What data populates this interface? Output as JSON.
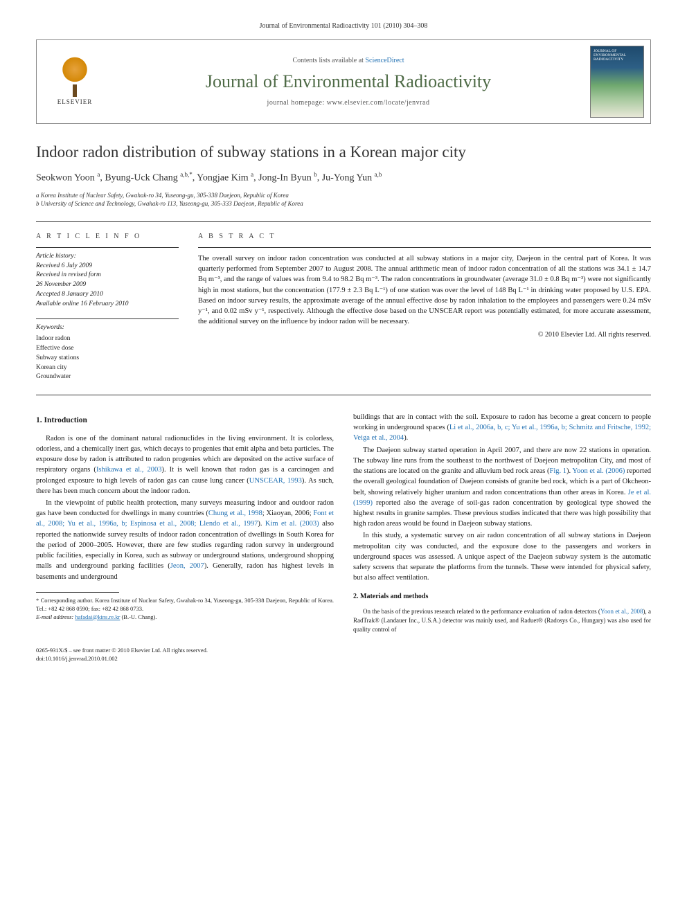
{
  "running_head": "Journal of Environmental Radioactivity 101 (2010) 304–308",
  "masthead": {
    "elsevier": "ELSEVIER",
    "contents_prefix": "Contents lists available at ",
    "contents_link": "ScienceDirect",
    "journal_name": "Journal of Environmental Radioactivity",
    "homepage_prefix": "journal homepage: ",
    "homepage_url": "www.elsevier.com/locate/jenvrad",
    "cover_text": "JOURNAL OF ENVIRONMENTAL RADIOACTIVITY"
  },
  "title": "Indoor radon distribution of subway stations in a Korean major city",
  "authors_html": "Seokwon Yoon <sup>a</sup>, Byung-Uck Chang <sup>a,b,*</sup>, Yongjae Kim <sup>a</sup>, Jong-In Byun <sup>b</sup>, Ju-Yong Yun <sup>a,b</sup>",
  "affiliations": [
    "a Korea Institute of Nuclear Safety, Gwahak-ro 34, Yuseong-gu, 305-338 Daejeon, Republic of Korea",
    "b University of Science and Technology, Gwahak-ro 113, Yuseong-gu, 305-333 Daejeon, Republic of Korea"
  ],
  "info_label": "A R T I C L E   I N F O",
  "abstract_label": "A B S T R A C T",
  "history": {
    "hdr": "Article history:",
    "lines": [
      "Received 6 July 2009",
      "Received in revised form",
      "26 November 2009",
      "Accepted 8 January 2010",
      "Available online 16 February 2010"
    ]
  },
  "keywords": {
    "hdr": "Keywords:",
    "items": [
      "Indoor radon",
      "Effective dose",
      "Subway stations",
      "Korean city",
      "Groundwater"
    ]
  },
  "abstract": "The overall survey on indoor radon concentration was conducted at all subway stations in a major city, Daejeon in the central part of Korea. It was quarterly performed from September 2007 to August 2008. The annual arithmetic mean of indoor radon concentration of all the stations was 34.1 ± 14.7 Bq m⁻³, and the range of values was from 9.4 to 98.2 Bq m⁻³. The radon concentrations in groundwater (average 31.0 ± 0.8 Bq m⁻³) were not significantly high in most stations, but the concentration (177.9 ± 2.3 Bq L⁻¹) of one station was over the level of 148 Bq L⁻¹ in drinking water proposed by U.S. EPA. Based on indoor survey results, the approximate average of the annual effective dose by radon inhalation to the employees and passengers were 0.24 mSv y⁻¹, and 0.02 mSv y⁻¹, respectively. Although the effective dose based on the UNSCEAR report was potentially estimated, for more accurate assessment, the additional survey on the influence by indoor radon will be necessary.",
  "copyright": "© 2010 Elsevier Ltd. All rights reserved.",
  "sections": {
    "intro_heading": "1.  Introduction",
    "intro_p1": "Radon is one of the dominant natural radionuclides in the living environment. It is colorless, odorless, and a chemically inert gas, which decays to progenies that emit alpha and beta particles. The exposure dose by radon is attributed to radon progenies which are deposited on the active surface of respiratory organs (",
    "intro_p1_cite1": "Ishikawa et al., 2003",
    "intro_p1b": "). It is well known that radon gas is a carcinogen and prolonged exposure to high levels of radon gas can cause lung cancer (",
    "intro_p1_cite2": "UNSCEAR, 1993",
    "intro_p1c": "). As such, there has been much concern about the indoor radon.",
    "intro_p2a": "In the viewpoint of public health protection, many surveys measuring indoor and outdoor radon gas have been conducted for dwellings in many countries (",
    "intro_p2_cite1": "Chung et al., 1998",
    "intro_p2b": "; Xiaoyan, 2006; ",
    "intro_p2_cite2": "Font et al., 2008; Yu et al., 1996a, b; Espinosa et al., 2008; Llendo et al., 1997",
    "intro_p2c": "). ",
    "intro_p2_cite3": "Kim et al. (2003)",
    "intro_p2d": " also reported the nationwide survey results of indoor radon concentration of dwellings in South Korea for the period of 2000–2005. However, there are few studies regarding radon survey in underground public facilities, especially in Korea, such as subway or underground stations, underground shopping malls and underground parking facilities (",
    "intro_p2_cite4": "Jeon, 2007",
    "intro_p2e": "). Generally, radon has highest levels in basements and underground",
    "col2_p1a": "buildings that are in contact with the soil. Exposure to radon has become a great concern to people working in underground spaces (",
    "col2_p1_cite1": "Li et al., 2006a, b, c; Yu et al., 1996a, b; Schmitz and Fritsche, 1992; Veiga et al., 2004",
    "col2_p1b": ").",
    "col2_p2a": "The Daejeon subway started operation in April 2007, and there are now 22 stations in operation. The subway line runs from the southeast to the northwest of Daejeon metropolitan City, and most of the stations are located on the granite and alluvium bed rock areas (",
    "col2_p2_cite1": "Fig. 1",
    "col2_p2b": "). ",
    "col2_p2_cite2": "Yoon et al. (2006)",
    "col2_p2c": " reported the overall geological foundation of Daejeon consists of granite bed rock, which is a part of Okcheon-belt, showing relatively higher uranium and radon concentrations than other areas in Korea. ",
    "col2_p2_cite3": "Je et al. (1999)",
    "col2_p2d": " reported also the average of soil-gas radon concentration by geological type showed the highest results in granite samples. These previous studies indicated that there was high possibility that high radon areas would be found in Daejeon subway stations.",
    "col2_p3": "In this study, a systematic survey on air radon concentration of all subway stations in Daejeon metropolitan city was conducted, and the exposure dose to the passengers and workers in underground spaces was assessed. A unique aspect of the Daejeon subway system is the automatic safety screens that separate the platforms from the tunnels. These were intended for physical safety, but also affect ventilation.",
    "methods_heading": "2.  Materials and methods",
    "methods_p1a": "On the basis of the previous research related to the performance evaluation of radon detectors (",
    "methods_p1_cite1": "Yoon et al., 2008",
    "methods_p1b": "), a RadTrak® (Landauer Inc., U.S.A.) detector was mainly used, and Raduet® (Radosys Co., Hungary) was also used for quality control of"
  },
  "footnotes": {
    "corresponding": "* Corresponding author. Korea Institute of Nuclear Safety, Gwahak-ro 34, Yuseong-gu, 305-338 Daejeon, Republic of Korea. Tel.: +82 42 868 0590; fax: +82 42 868 0733.",
    "email_label": "E-mail address: ",
    "email": "hafadai@kins.re.kr",
    "email_suffix": " (B.-U. Chang)."
  },
  "footer": {
    "left_line1": "0265-931X/$ – see front matter © 2010 Elsevier Ltd. All rights reserved.",
    "left_line2": "doi:10.1016/j.jenvrad.2010.01.002"
  },
  "colors": {
    "link": "#1f6fb2",
    "journal_green": "#4f6b47",
    "text": "#1a1a1a",
    "rule": "#333333"
  }
}
